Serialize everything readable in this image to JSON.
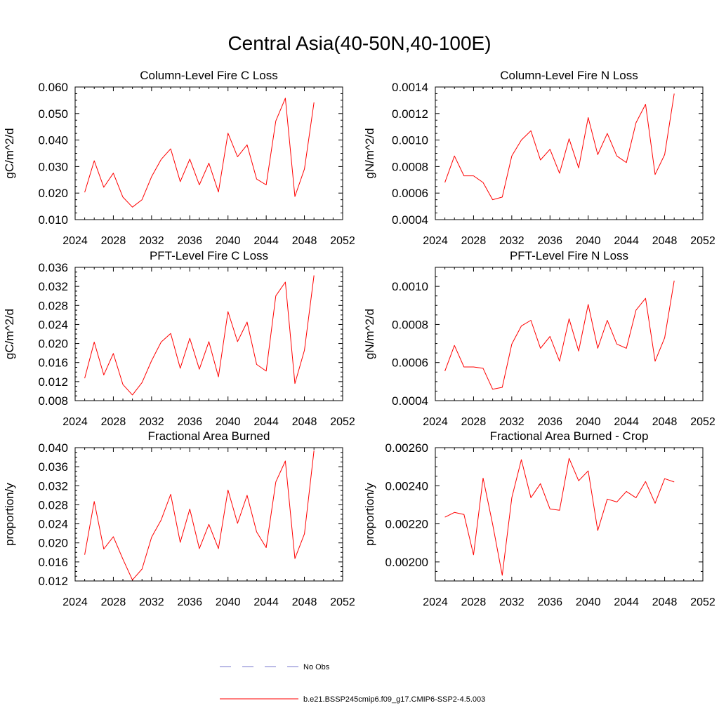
{
  "figure": {
    "title": "Central Asia(40-50N,40-100E)",
    "legend": [
      {
        "label": "No Obs",
        "color": "#7777cc",
        "style": "dashed"
      },
      {
        "label": "b.e21.BSSP245cmip6.f09_g17.CMIP6-SSP2-4.5.003",
        "color": "#ff0000",
        "style": "solid"
      }
    ]
  },
  "chart_data": [
    {
      "type": "line",
      "title": "Column-Level Fire C Loss",
      "ylabel": "gC/m^2/d",
      "xlim": [
        2024,
        2052
      ],
      "ylim": [
        0.01,
        0.06
      ],
      "xticks": [
        "2024",
        "2028",
        "2032",
        "2036",
        "2040",
        "2044",
        "2048",
        "2052"
      ],
      "yticks": [
        "0.010",
        "0.020",
        "0.030",
        "0.040",
        "0.050",
        "0.060"
      ],
      "x": [
        2025,
        2026,
        2027,
        2028,
        2029,
        2030,
        2031,
        2032,
        2033,
        2034,
        2035,
        2036,
        2037,
        2038,
        2039,
        2040,
        2041,
        2042,
        2043,
        2044,
        2045,
        2046,
        2047,
        2048,
        2049
      ],
      "series": [
        {
          "color": "#ff0000",
          "values": [
            0.0203,
            0.0322,
            0.0222,
            0.0275,
            0.0185,
            0.0147,
            0.0175,
            0.0262,
            0.0327,
            0.0367,
            0.0243,
            0.0328,
            0.0231,
            0.0313,
            0.0204,
            0.0426,
            0.0337,
            0.0382,
            0.0253,
            0.0231,
            0.0472,
            0.0558,
            0.0187,
            0.0291,
            0.0542
          ]
        }
      ]
    },
    {
      "type": "line",
      "title": "Column-Level Fire N Loss",
      "ylabel": "gN/m^2/d",
      "xlim": [
        2024,
        2052
      ],
      "ylim": [
        0.0004,
        0.0014
      ],
      "xticks": [
        "2024",
        "2028",
        "2032",
        "2036",
        "2040",
        "2044",
        "2048",
        "2052"
      ],
      "yticks": [
        "0.0004",
        "0.0006",
        "0.0008",
        "0.0010",
        "0.0012",
        "0.0014"
      ],
      "x": [
        2025,
        2026,
        2027,
        2028,
        2029,
        2030,
        2031,
        2032,
        2033,
        2034,
        2035,
        2036,
        2037,
        2038,
        2039,
        2040,
        2041,
        2042,
        2043,
        2044,
        2045,
        2046,
        2047,
        2048,
        2049
      ],
      "series": [
        {
          "color": "#ff0000",
          "values": [
            0.00068,
            0.00088,
            0.00073,
            0.00073,
            0.00068,
            0.00055,
            0.00057,
            0.00088,
            0.001,
            0.00107,
            0.00085,
            0.00093,
            0.00075,
            0.00101,
            0.00079,
            0.00117,
            0.00089,
            0.00105,
            0.00088,
            0.00083,
            0.00113,
            0.00127,
            0.00074,
            0.00089,
            0.00135
          ]
        }
      ]
    },
    {
      "type": "line",
      "title": "PFT-Level Fire C Loss",
      "ylabel": "gC/m^2/d",
      "xlim": [
        2024,
        2052
      ],
      "ylim": [
        0.008,
        0.036
      ],
      "xticks": [
        "2024",
        "2028",
        "2032",
        "2036",
        "2040",
        "2044",
        "2048",
        "2052"
      ],
      "yticks": [
        "0.008",
        "0.012",
        "0.016",
        "0.020",
        "0.024",
        "0.028",
        "0.032",
        "0.036"
      ],
      "x": [
        2025,
        2026,
        2027,
        2028,
        2029,
        2030,
        2031,
        2032,
        2033,
        2034,
        2035,
        2036,
        2037,
        2038,
        2039,
        2040,
        2041,
        2042,
        2043,
        2044,
        2045,
        2046,
        2047,
        2048,
        2049
      ],
      "series": [
        {
          "color": "#ff0000",
          "values": [
            0.0127,
            0.0203,
            0.0134,
            0.0179,
            0.0114,
            0.0092,
            0.0118,
            0.0164,
            0.0203,
            0.0221,
            0.0148,
            0.0211,
            0.0146,
            0.0204,
            0.013,
            0.0267,
            0.0204,
            0.0245,
            0.0156,
            0.0142,
            0.03,
            0.0329,
            0.0116,
            0.0186,
            0.0343
          ]
        }
      ]
    },
    {
      "type": "line",
      "title": "PFT-Level Fire N Loss",
      "ylabel": "gN/m^2/d",
      "xlim": [
        2024,
        2052
      ],
      "ylim": [
        0.0004,
        0.0011
      ],
      "xticks": [
        "2024",
        "2028",
        "2032",
        "2036",
        "2040",
        "2044",
        "2048",
        "2052"
      ],
      "yticks": [
        "0.0004",
        "0.0006",
        "0.0008",
        "0.0010"
      ],
      "x": [
        2025,
        2026,
        2027,
        2028,
        2029,
        2030,
        2031,
        2032,
        2033,
        2034,
        2035,
        2036,
        2037,
        2038,
        2039,
        2040,
        2041,
        2042,
        2043,
        2044,
        2045,
        2046,
        2047,
        2048,
        2049
      ],
      "series": [
        {
          "color": "#ff0000",
          "values": [
            0.000555,
            0.00069,
            0.000577,
            0.000577,
            0.00057,
            0.00046,
            0.00047,
            0.000697,
            0.000792,
            0.000822,
            0.000675,
            0.000737,
            0.000607,
            0.00083,
            0.00066,
            0.000905,
            0.000675,
            0.000822,
            0.000697,
            0.000675,
            0.000875,
            0.000937,
            0.000607,
            0.00073,
            0.00103
          ]
        }
      ]
    },
    {
      "type": "line",
      "title": "Fractional Area Burned",
      "ylabel": "proportion/y",
      "xlim": [
        2024,
        2052
      ],
      "ylim": [
        0.012,
        0.04
      ],
      "xticks": [
        "2024",
        "2028",
        "2032",
        "2036",
        "2040",
        "2044",
        "2048",
        "2052"
      ],
      "yticks": [
        "0.012",
        "0.016",
        "0.020",
        "0.024",
        "0.028",
        "0.032",
        "0.036",
        "0.040"
      ],
      "x": [
        2025,
        2026,
        2027,
        2028,
        2029,
        2030,
        2031,
        2032,
        2033,
        2034,
        2035,
        2036,
        2037,
        2038,
        2039,
        2040,
        2041,
        2042,
        2043,
        2044,
        2045,
        2046,
        2047,
        2048,
        2049
      ],
      "series": [
        {
          "color": "#ff0000",
          "values": [
            0.0175,
            0.0287,
            0.0187,
            0.0213,
            0.0166,
            0.0122,
            0.0145,
            0.0212,
            0.0248,
            0.0302,
            0.0201,
            0.0271,
            0.0188,
            0.0239,
            0.0188,
            0.0311,
            0.0241,
            0.03,
            0.0223,
            0.019,
            0.0328,
            0.0372,
            0.0167,
            0.0219,
            0.0394
          ]
        }
      ]
    },
    {
      "type": "line",
      "title": "Fractional Area Burned - Crop",
      "ylabel": "proportion/y",
      "xlim": [
        2024,
        2052
      ],
      "ylim": [
        0.0019,
        0.0026
      ],
      "xticks": [
        "2024",
        "2028",
        "2032",
        "2036",
        "2040",
        "2044",
        "2048",
        "2052"
      ],
      "yticks": [
        "0.00200",
        "0.00220",
        "0.00240",
        "0.00260"
      ],
      "x": [
        2025,
        2026,
        2027,
        2028,
        2029,
        2030,
        2031,
        2032,
        2033,
        2034,
        2035,
        2036,
        2037,
        2038,
        2039,
        2040,
        2041,
        2042,
        2043,
        2044,
        2045,
        2046,
        2047,
        2048,
        2049
      ],
      "series": [
        {
          "color": "#ff0000",
          "values": [
            0.002235,
            0.00226,
            0.002249,
            0.002037,
            0.00244,
            0.002198,
            0.00193,
            0.002337,
            0.002537,
            0.002337,
            0.002411,
            0.002278,
            0.002271,
            0.002544,
            0.002426,
            0.002478,
            0.002165,
            0.00233,
            0.002315,
            0.00237,
            0.002337,
            0.002422,
            0.002308,
            0.002437,
            0.00242
          ]
        }
      ]
    }
  ]
}
